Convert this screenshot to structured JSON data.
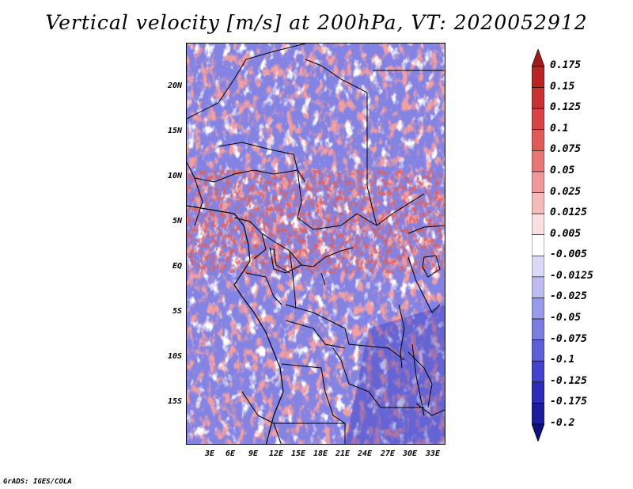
{
  "title": "Vertical velocity [m/s] at 200hPa, VT: 2020052912",
  "footer": "GrADS: IGES/COLA",
  "map": {
    "variable": "Vertical velocity",
    "units": "m/s",
    "level": "200hPa",
    "valid_time": "2020052912",
    "lat_labels": [
      "20N",
      "15N",
      "10N",
      "5N",
      "EQ",
      "5S",
      "10S",
      "15S"
    ],
    "lon_labels": [
      "3E",
      "6E",
      "9E",
      "12E",
      "15E",
      "18E",
      "21E",
      "24E",
      "27E",
      "30E",
      "33E"
    ],
    "lat_range": [
      -20,
      25
    ],
    "lon_range": [
      0,
      35
    ],
    "background": "mixed red/blue speckled field; strong positive band near 0–8N, negative dominant in south and east"
  },
  "colorbar": {
    "levels": [
      "0.175",
      "0.15",
      "0.125",
      "0.1",
      "0.075",
      "0.05",
      "0.025",
      "0.0125",
      "0.005",
      "-0.005",
      "-0.0125",
      "-0.025",
      "-0.05",
      "-0.075",
      "-0.1",
      "-0.125",
      "-0.175",
      "-0.2"
    ],
    "colors": [
      "#a01a1a",
      "#b82424",
      "#c83232",
      "#d64444",
      "#e05a5a",
      "#e87676",
      "#f09898",
      "#f6bcbc",
      "#fbdede",
      "#ffffff",
      "#dadaf8",
      "#bcbcf2",
      "#9a9aea",
      "#7c7ce2",
      "#5e5ed8",
      "#4242cc",
      "#2c2cb8",
      "#1c1c9e",
      "#10107e"
    ]
  }
}
